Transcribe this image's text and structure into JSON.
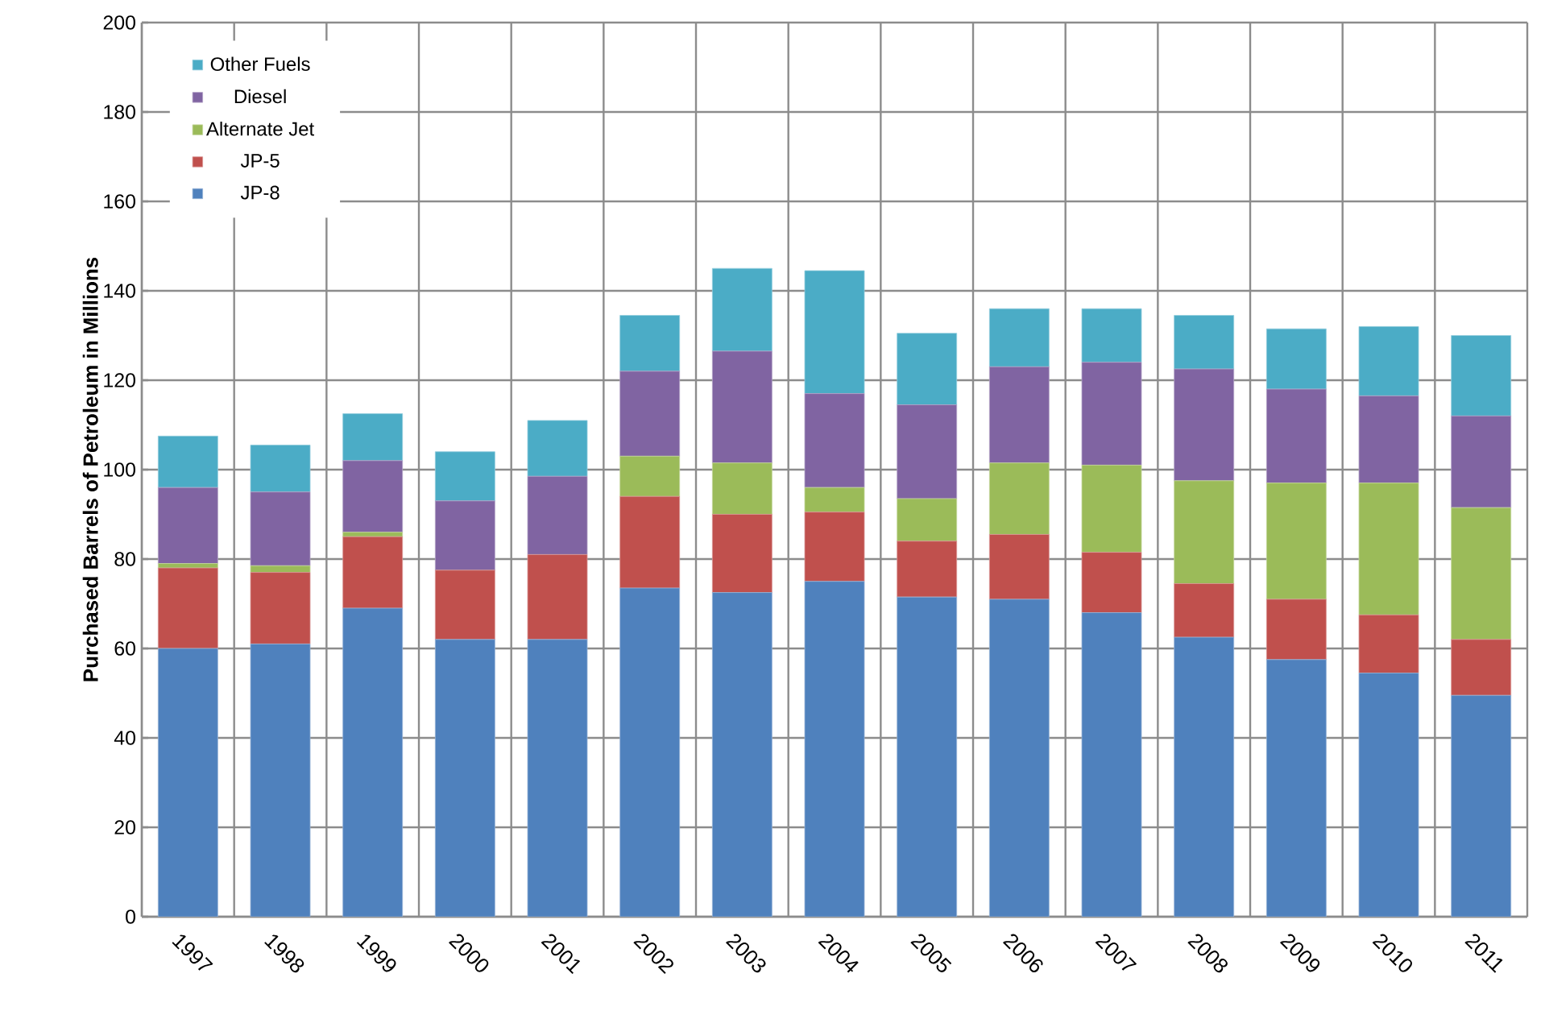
{
  "chart_data": {
    "type": "bar",
    "stacked": true,
    "ylabel": "**Purchased Barrels of Petroleum in Millions**",
    "categories": [
      "1997",
      "1998",
      "1999",
      "2000",
      "2001",
      "2002",
      "2003",
      "2004",
      "2005",
      "2006",
      "2007",
      "2008",
      "2009",
      "2010",
      "2011"
    ],
    "series": [
      {
        "name": "JP-8",
        "color": "#4f81bd",
        "values": [
          60,
          61,
          69,
          62,
          62,
          73.5,
          72.5,
          75,
          71.5,
          71,
          68,
          62.5,
          57.5,
          54.5,
          49.5
        ]
      },
      {
        "name": "JP-5",
        "color": "#c0504d",
        "values": [
          18,
          16,
          16,
          15.5,
          19,
          20.5,
          17.5,
          15.5,
          12.5,
          14.5,
          13.5,
          12,
          13.5,
          13,
          12.5
        ]
      },
      {
        "name": "Alternate Jet",
        "color": "#9bbb59",
        "values": [
          1,
          1.5,
          1,
          0,
          0,
          9,
          11.5,
          5.5,
          9.5,
          16,
          19.5,
          23,
          26,
          29.5,
          29.5
        ]
      },
      {
        "name": "Diesel",
        "color": "#8064a2",
        "values": [
          17,
          16.5,
          16,
          15.5,
          17.5,
          19,
          25,
          21,
          21,
          21.5,
          23,
          25,
          21,
          19.5,
          20.5
        ]
      },
      {
        "name": "Other Fuels",
        "color": "#4bacc6",
        "values": [
          11.5,
          10.5,
          10.5,
          11,
          12.5,
          12.5,
          18.5,
          27.5,
          16,
          13,
          12,
          12,
          13.5,
          15.5,
          18
        ]
      }
    ],
    "ylim": [
      0,
      200
    ],
    "yticks": [
      0,
      20,
      40,
      60,
      80,
      100,
      120,
      140,
      160,
      180,
      200
    ],
    "grid": true,
    "legend": "top left"
  }
}
